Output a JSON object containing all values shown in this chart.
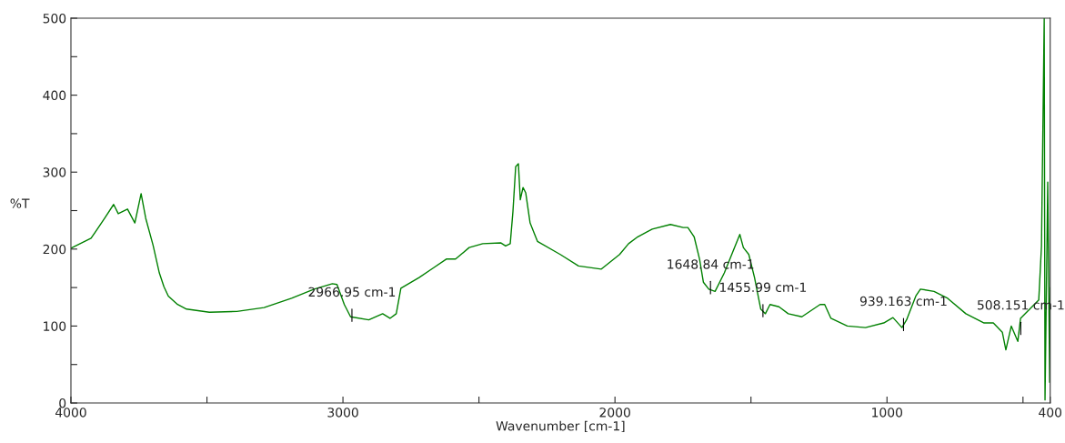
{
  "chart_data": {
    "type": "line",
    "xlabel": "Wavenumber [cm-1]",
    "ylabel": "%T",
    "xlim": [
      4000,
      400
    ],
    "ylim": [
      0,
      500
    ],
    "xticks": [
      4000,
      {
        "value": 3500,
        "label": null
      },
      3000,
      {
        "value": 2500,
        "label": null
      },
      2000,
      {
        "value": 1500,
        "label": null
      },
      1000,
      {
        "value": 500,
        "label": null
      },
      400
    ],
    "yticks": [
      0,
      {
        "value": 50,
        "label": null
      },
      100,
      {
        "value": 150,
        "label": null
      },
      200,
      {
        "value": 250,
        "label": null
      },
      300,
      {
        "value": 350,
        "label": null
      },
      400,
      {
        "value": 450,
        "label": null
      },
      500
    ],
    "grid": false,
    "legend": false,
    "marker": "none",
    "line_style": "solid",
    "series": [
      {
        "color": "#008000",
        "x": [
          4000,
          3926,
          3876,
          3843,
          3826,
          3792,
          3765,
          3742,
          3725,
          3698,
          3675,
          3658,
          3642,
          3608,
          3575,
          3491,
          3390,
          3290,
          3189,
          3106,
          3039,
          3022,
          2995,
          2972,
          2905,
          2854,
          2827,
          2804,
          2787,
          2720,
          2670,
          2620,
          2586,
          2536,
          2486,
          2419,
          2402,
          2385,
          2375,
          2365,
          2355,
          2348,
          2338,
          2328,
          2312,
          2285,
          2201,
          2134,
          2050,
          1983,
          1950,
          1916,
          1863,
          1796,
          1749,
          1732,
          1709,
          1689,
          1675,
          1655,
          1632,
          1598,
          1564,
          1541,
          1528,
          1508,
          1487,
          1464,
          1447,
          1430,
          1397,
          1363,
          1313,
          1246,
          1229,
          1206,
          1146,
          1079,
          1012,
          978,
          945,
          928,
          894,
          877,
          827,
          777,
          710,
          643,
          609,
          576,
          563,
          543,
          519,
          509,
          442,
          432,
          422,
          419,
          409,
          402,
          400
        ],
        "values": [
          201,
          214,
          240,
          258,
          246,
          252,
          234,
          272,
          240,
          205,
          169,
          151,
          139,
          128,
          122,
          118,
          119,
          124,
          136,
          148,
          155,
          154,
          128,
          112,
          108,
          116,
          110,
          116,
          149,
          163,
          175,
          187,
          187,
          202,
          207,
          208,
          204,
          207,
          249,
          307,
          311,
          264,
          280,
          273,
          234,
          210,
          193,
          178,
          174,
          193,
          207,
          216,
          226,
          232,
          228,
          228,
          216,
          187,
          157,
          148,
          145,
          169,
          199,
          219,
          202,
          193,
          163,
          122,
          116,
          128,
          125,
          116,
          112,
          128,
          128,
          110,
          100,
          98,
          104,
          111,
          98,
          108,
          139,
          148,
          145,
          136,
          116,
          104,
          104,
          92,
          69,
          100,
          80,
          110,
          134,
          204,
          500,
          4,
          287,
          27,
          150
        ]
      }
    ],
    "annotations": [
      {
        "text": "2966.95 cm-1",
        "x": 2966.95,
        "y": 112
      },
      {
        "text": "1648.84 cm-1",
        "x": 1648.84,
        "y": 148
      },
      {
        "text": "1455.99 cm-1",
        "x": 1455.99,
        "y": 118
      },
      {
        "text": "939.163 cm-1",
        "x": 939.163,
        "y": 100
      },
      {
        "text": "508.151 cm-1",
        "x": 508.151,
        "y": 95
      }
    ]
  }
}
